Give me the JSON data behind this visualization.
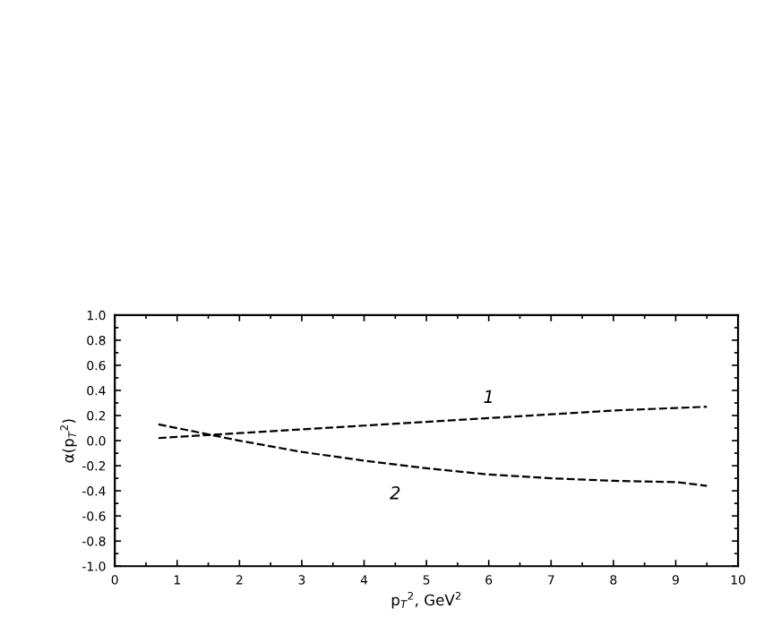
{
  "chart_data": {
    "type": "line",
    "xlabel": "p$_{T}$$^{2}$, GeV$^{2}$",
    "ylabel": "α(p$_{T}$$^{2}$)",
    "series": [
      {
        "color": "#000000",
        "x": [
          0.7,
          1,
          2,
          3,
          4,
          5,
          6,
          7,
          8,
          9,
          9.5
        ],
        "values": [
          0.02,
          0.03,
          0.06,
          0.09,
          0.12,
          0.15,
          0.18,
          0.21,
          0.24,
          0.26,
          0.27
        ]
      },
      {
        "color": "#000000",
        "x": [
          0.7,
          1,
          1.5,
          2,
          3,
          4,
          5,
          6,
          7,
          8,
          9,
          9.5
        ],
        "values": [
          0.13,
          0.1,
          0.05,
          0.0,
          -0.09,
          -0.16,
          -0.22,
          -0.27,
          -0.3,
          -0.32,
          -0.33,
          -0.36
        ]
      }
    ],
    "annotations": [
      {
        "text": "1",
        "x": 6,
        "y": 0.18
      },
      {
        "text": "2",
        "x": 4.5,
        "y": -0.19
      }
    ],
    "xlim": [
      0,
      10
    ],
    "ylim": [
      -1.0,
      1.0
    ],
    "xticks": [
      0,
      1,
      2,
      3,
      4,
      5,
      6,
      7,
      8,
      9,
      10
    ],
    "yticks": [
      {
        "value": -1.0,
        "label": "-1.0"
      },
      {
        "value": -0.8,
        "label": "-0.8"
      },
      {
        "value": -0.6,
        "label": "-0.6"
      },
      {
        "value": -0.4,
        "label": "-0.4"
      },
      {
        "value": -0.2,
        "label": "-0.2"
      },
      {
        "value": 0.0,
        "label": "0.0"
      },
      {
        "value": 0.2,
        "label": "0.2"
      },
      {
        "value": 0.4,
        "label": "0.4"
      },
      {
        "value": 0.6,
        "label": "0.6"
      },
      {
        "value": 0.8,
        "label": "0.8"
      },
      {
        "value": 1.0,
        "label": "1.0"
      }
    ],
    "grid": false,
    "legend": false,
    "line_style": "dashed",
    "marker": "none"
  }
}
